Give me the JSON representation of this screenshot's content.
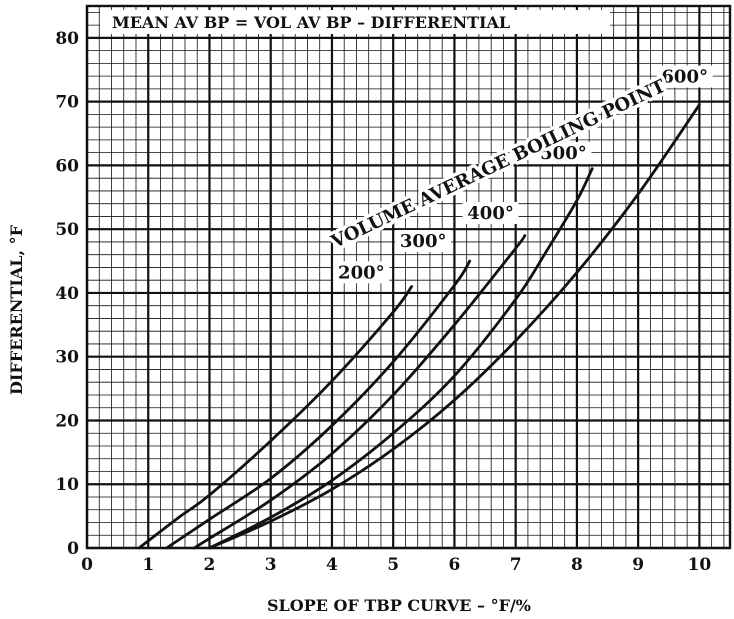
{
  "chart_data": {
    "type": "line",
    "title": "MEAN AV BP = VOL AV BP – DIFFERENTIAL",
    "xlabel": "SLOPE OF TBP CURVE – °F/%",
    "ylabel": "DIFFERENTIAL, °F",
    "xlim": [
      0,
      10.5
    ],
    "ylim": [
      0,
      85
    ],
    "xticks": [
      "0",
      "1",
      "2",
      "3",
      "4",
      "5",
      "6",
      "7",
      "8",
      "9",
      "10"
    ],
    "yticks": [
      "0",
      "10",
      "20",
      "30",
      "40",
      "50",
      "60",
      "70",
      "80"
    ],
    "grid": true,
    "series_group_label": "VOLUME AVERAGE BOILING POINT",
    "series": [
      {
        "name": "200°",
        "x": [
          0.85,
          1.5,
          2.0,
          3.0,
          4.0,
          5.0,
          5.3
        ],
        "y": [
          0,
          4.8,
          8.3,
          16.8,
          26.2,
          37.0,
          41.0
        ]
      },
      {
        "name": "300°",
        "x": [
          1.3,
          2.0,
          3.0,
          4.0,
          5.0,
          6.0,
          6.25
        ],
        "y": [
          0,
          4.5,
          10.9,
          19.2,
          29.2,
          41.2,
          45.0
        ]
      },
      {
        "name": "400°",
        "x": [
          1.75,
          2.0,
          3.0,
          4.0,
          5.0,
          6.0,
          7.0,
          7.15
        ],
        "y": [
          0,
          1.5,
          7.5,
          14.8,
          24.0,
          35.0,
          47.0,
          49.0
        ]
      },
      {
        "name": "500°",
        "x": [
          2.0,
          3.0,
          4.0,
          5.0,
          6.0,
          7.0,
          7.5,
          8.0,
          8.25
        ],
        "y": [
          0,
          4.8,
          10.6,
          18.0,
          27.0,
          39.0,
          46.5,
          54.5,
          59.5
        ]
      },
      {
        "name": "600°",
        "x": [
          2.0,
          3.0,
          4.0,
          5.0,
          6.0,
          7.0,
          8.0,
          9.0,
          10.0
        ],
        "y": [
          0,
          4.2,
          9.2,
          15.5,
          23.2,
          32.5,
          43.2,
          55.5,
          69.5
        ]
      }
    ]
  }
}
